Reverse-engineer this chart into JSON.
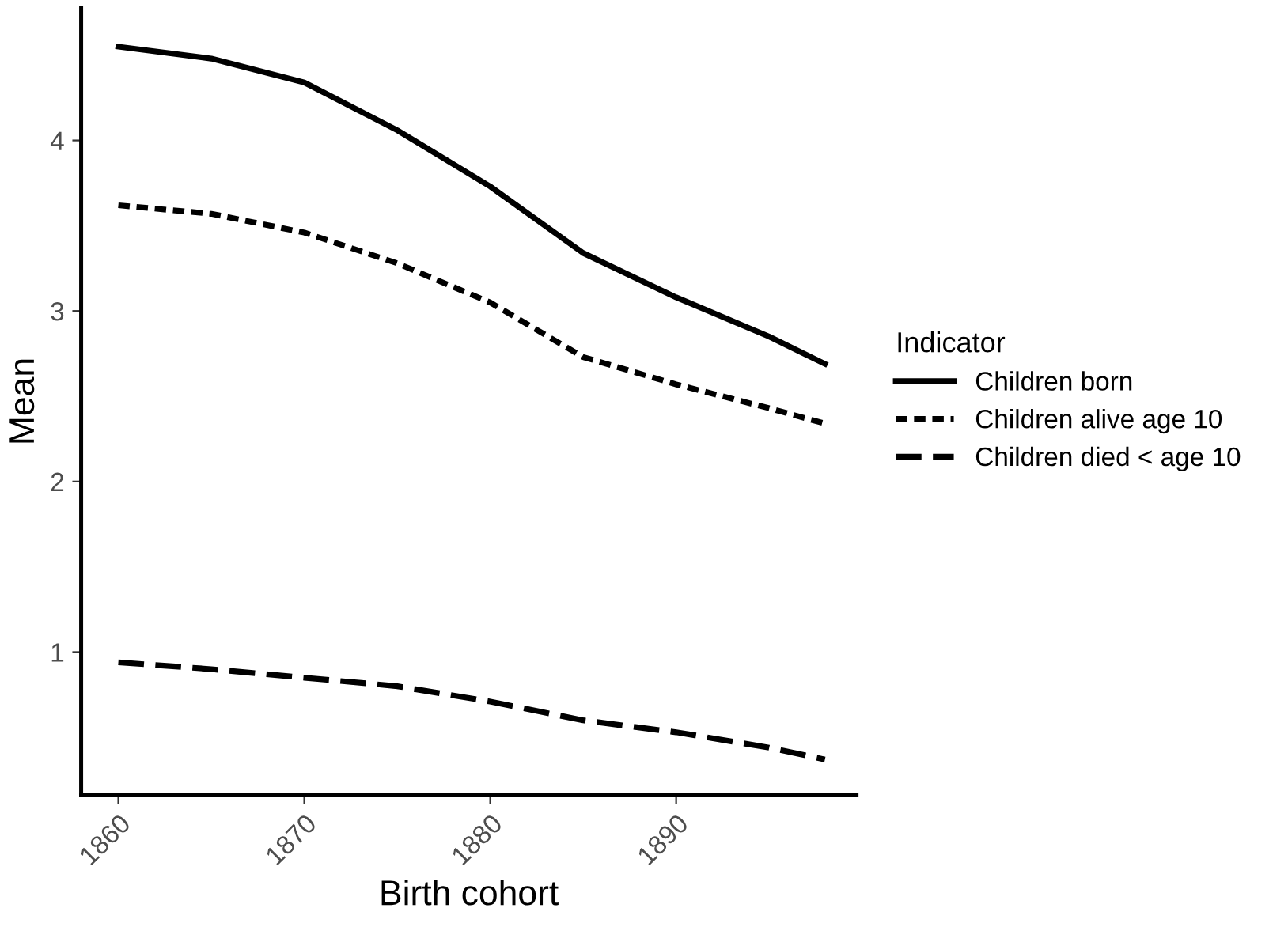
{
  "chart_data": {
    "type": "line",
    "xlabel": "Birth cohort",
    "ylabel": "Mean",
    "legend_title": "Indicator",
    "legend": "right",
    "grid": false,
    "marker": "none",
    "x": [
      1860,
      1865,
      1870,
      1875,
      1880,
      1885,
      1890,
      1895,
      1898
    ],
    "xlim": [
      1858,
      1899.7
    ],
    "xticks": [
      1860,
      1870,
      1880,
      1890
    ],
    "ylim": [
      0.16,
      4.78
    ],
    "yticks": [
      1,
      2,
      3,
      4
    ],
    "series": [
      {
        "name": "Children born",
        "color": "#000000",
        "line_style": "solid",
        "values": [
          4.55,
          4.48,
          4.34,
          4.06,
          3.73,
          3.34,
          3.08,
          2.85,
          2.69
        ]
      },
      {
        "name": "Children alive age 10",
        "color": "#000000",
        "line_style": "dotted",
        "values": [
          3.62,
          3.57,
          3.46,
          3.28,
          3.05,
          2.73,
          2.57,
          2.43,
          2.34
        ]
      },
      {
        "name": "Children died < age 10",
        "color": "#000000",
        "line_style": "dashed",
        "values": [
          0.94,
          0.9,
          0.85,
          0.8,
          0.71,
          0.6,
          0.53,
          0.44,
          0.37
        ]
      }
    ]
  }
}
